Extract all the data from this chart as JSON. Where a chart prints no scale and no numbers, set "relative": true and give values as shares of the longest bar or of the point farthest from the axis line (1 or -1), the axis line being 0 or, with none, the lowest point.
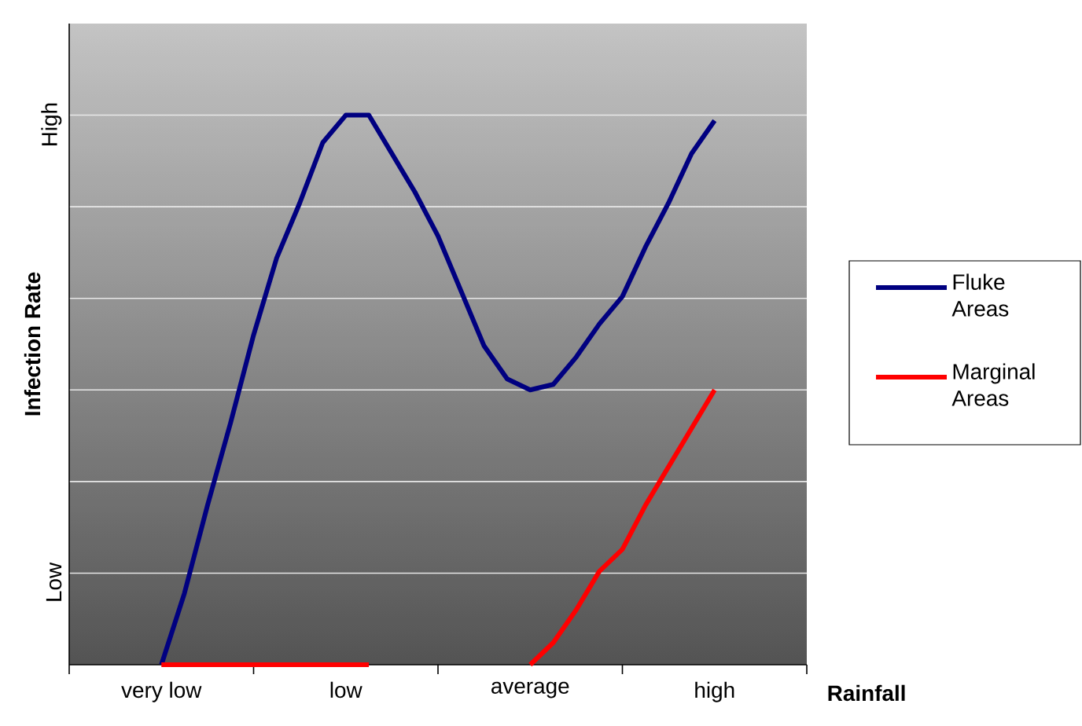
{
  "chart_data": {
    "type": "line",
    "relative": true,
    "xlabel": "Rainfall",
    "ylabel": "Infection Rate",
    "categories": [
      "very low",
      null,
      null,
      null,
      null,
      null,
      null,
      null,
      "low",
      null,
      null,
      null,
      null,
      null,
      null,
      null,
      "average",
      null,
      null,
      null,
      null,
      null,
      null,
      null,
      "high"
    ],
    "annotations": [
      "Low",
      "High"
    ],
    "grid": "y",
    "legend": "right",
    "line_style": "solid",
    "series": [
      {
        "name": "Fluke Areas",
        "color": "#000080",
        "values": [
          0,
          0.13,
          0.29,
          0.44,
          0.6,
          0.74,
          0.84,
          0.95,
          1.0,
          1.0,
          0.93,
          0.86,
          0.78,
          0.68,
          0.58,
          0.52,
          0.5,
          0.51,
          0.56,
          0.62,
          0.67,
          0.76,
          0.84,
          0.93,
          0.99
        ]
      },
      {
        "name": "Marginal Areas",
        "color": "#ff0000",
        "values": [
          0,
          0,
          0,
          0,
          0,
          0,
          0,
          0,
          0,
          0,
          null,
          null,
          null,
          null,
          null,
          null,
          0,
          0.04,
          0.1,
          0.17,
          0.21,
          0.29,
          0.36,
          0.43,
          0.5
        ]
      }
    ]
  }
}
